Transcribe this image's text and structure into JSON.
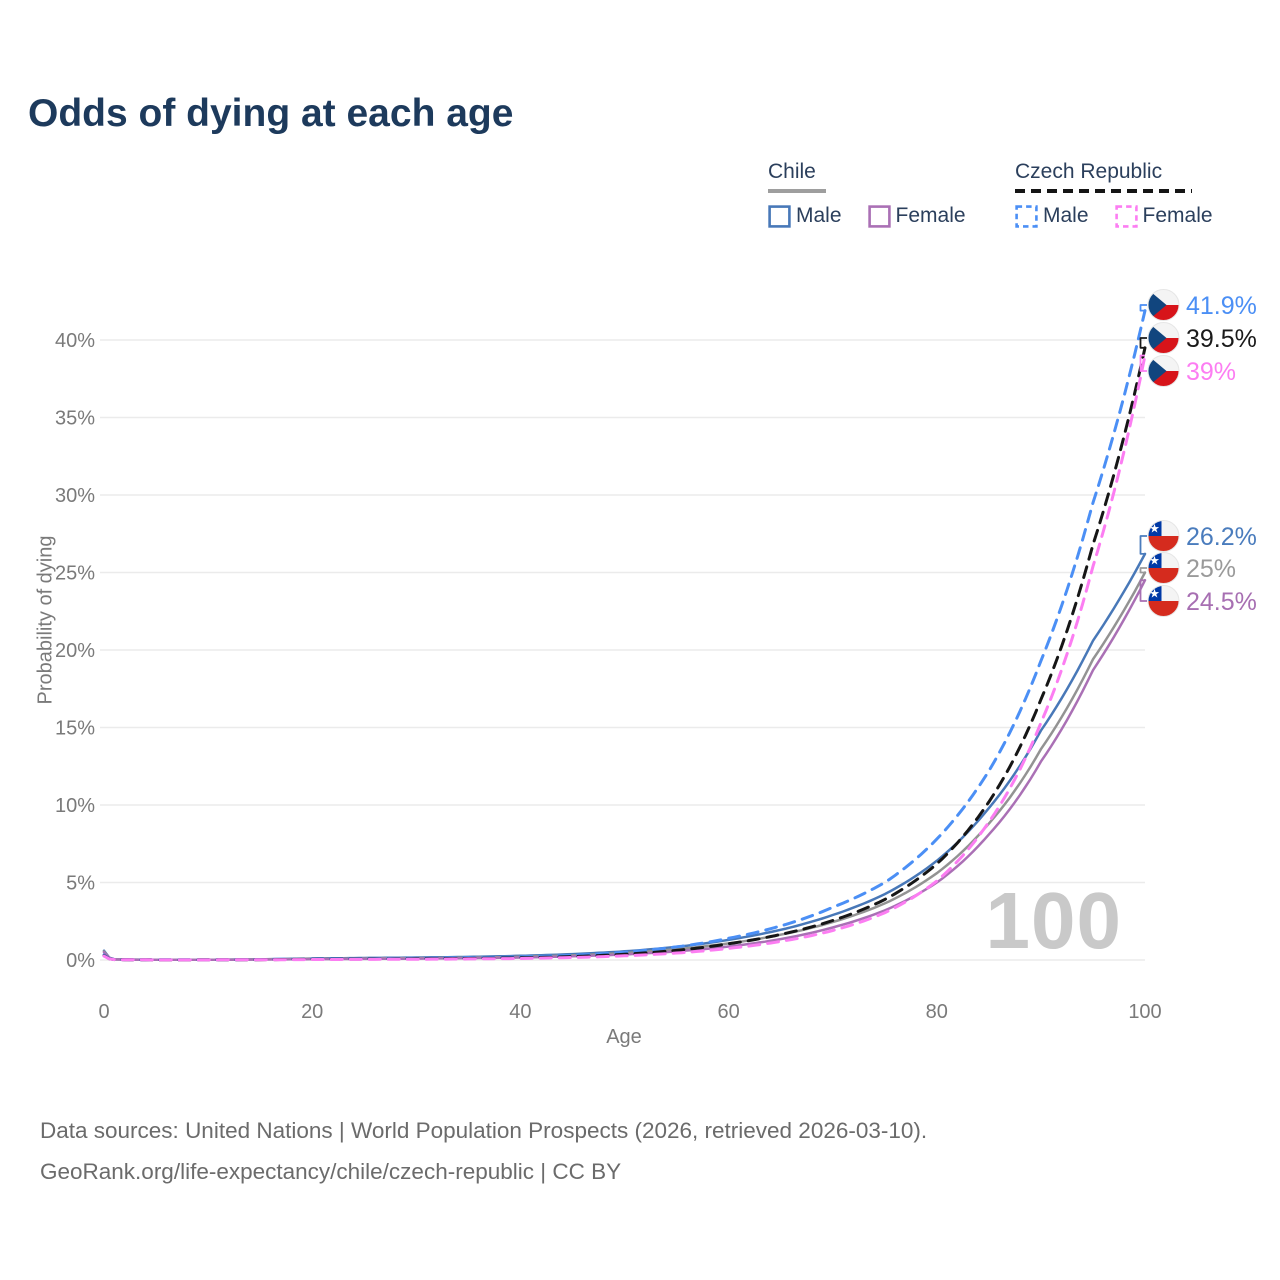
{
  "title": "Odds of dying at each age",
  "legend": {
    "groups": [
      {
        "label": "Chile",
        "line_style": "solid",
        "underline_color": "#9e9e9e",
        "items": [
          {
            "label": "Male",
            "color": "#4878b8"
          },
          {
            "label": "Female",
            "color": "#aa70b5"
          }
        ]
      },
      {
        "label": "Czech Republic",
        "line_style": "dashed",
        "underline_color": "#151515",
        "items": [
          {
            "label": "Male",
            "color": "#4b8ff5"
          },
          {
            "label": "Female",
            "color": "#fc7df2"
          }
        ]
      }
    ]
  },
  "axes": {
    "xlabel": "Age",
    "ylabel": "Probability of dying",
    "x_ticks": [
      0,
      20,
      40,
      60,
      80,
      100
    ],
    "x_tick_labels": [
      "0",
      "20",
      "40",
      "60",
      "80",
      "100"
    ],
    "y_ticks": [
      0,
      5,
      10,
      15,
      20,
      25,
      30,
      35,
      40
    ],
    "y_tick_labels": [
      "0%",
      "5%",
      "10%",
      "15%",
      "20%",
      "25%",
      "30%",
      "35%",
      "40%"
    ]
  },
  "watermark_age": "100",
  "end_labels": {
    "czech": [
      {
        "value": "41.9%",
        "series": "Czech Republic Male",
        "color": "#4b8ff5",
        "flag": "czech-flag-icon"
      },
      {
        "value": "39.5%",
        "series": "Czech Republic Both sexes",
        "color": "#1a1a1a",
        "flag": "czech-flag-icon"
      },
      {
        "value": "39%",
        "series": "Czech Republic Female",
        "color": "#fc7df2",
        "flag": "czech-flag-icon"
      }
    ],
    "chile": [
      {
        "value": "26.2%",
        "series": "Chile Male",
        "color": "#4a7cbd",
        "flag": "chile-flag-icon"
      },
      {
        "value": "25%",
        "series": "Chile Both sexes",
        "color": "#9a9a9a",
        "flag": "chile-flag-icon"
      },
      {
        "value": "24.5%",
        "series": "Chile Female",
        "color": "#a76fb2",
        "flag": "chile-flag-icon"
      }
    ]
  },
  "footer": {
    "line1": "Data sources: United Nations | World Population Prospects (2026, retrieved 2026-03-10).",
    "line2": "GeoRank.org/life-expectancy/chile/czech-republic | CC BY"
  },
  "chart_data": {
    "type": "line",
    "title": "Odds of dying at each age",
    "xlabel": "Age",
    "ylabel": "Probability of dying",
    "xlim": [
      0,
      100
    ],
    "ylim": [
      0,
      42
    ],
    "grid": true,
    "legend_position": "top-right",
    "units": "percent probability of dying at each age",
    "x": [
      0,
      1,
      5,
      10,
      15,
      20,
      25,
      30,
      35,
      40,
      45,
      50,
      55,
      60,
      65,
      70,
      75,
      80,
      85,
      90,
      95,
      100
    ],
    "series": [
      {
        "name": "Chile Male",
        "color": "#4878b8",
        "dash": "solid",
        "values": [
          0.6,
          0.045,
          0.017,
          0.02,
          0.05,
          0.1,
          0.13,
          0.16,
          0.2,
          0.27,
          0.38,
          0.56,
          0.85,
          1.3,
          1.95,
          2.9,
          4.25,
          6.4,
          9.8,
          14.8,
          20.6,
          26.2
        ],
        "end_value_label": "26.2%"
      },
      {
        "name": "Chile Both sexes",
        "color": "#939393",
        "dash": "solid",
        "values": [
          0.55,
          0.04,
          0.015,
          0.017,
          0.04,
          0.08,
          0.1,
          0.12,
          0.15,
          0.21,
          0.3,
          0.45,
          0.7,
          1.07,
          1.63,
          2.45,
          3.65,
          5.6,
          8.8,
          13.6,
          19.4,
          25.0
        ],
        "end_value_label": "25%"
      },
      {
        "name": "Chile Female",
        "color": "#aa70b5",
        "dash": "solid",
        "values": [
          0.5,
          0.035,
          0.013,
          0.015,
          0.03,
          0.055,
          0.07,
          0.09,
          0.12,
          0.16,
          0.24,
          0.36,
          0.56,
          0.87,
          1.35,
          2.1,
          3.2,
          5.0,
          8.1,
          12.8,
          18.7,
          24.5
        ],
        "end_value_label": "24.5%"
      },
      {
        "name": "Czech Republic Male",
        "color": "#4b8ff5",
        "dash": "dashed",
        "values": [
          0.32,
          0.03,
          0.01,
          0.012,
          0.03,
          0.07,
          0.09,
          0.11,
          0.14,
          0.2,
          0.3,
          0.5,
          0.85,
          1.4,
          2.2,
          3.4,
          5.0,
          7.8,
          12.2,
          19.3,
          29.5,
          41.9
        ],
        "end_value_label": "41.9%"
      },
      {
        "name": "Czech Republic Both sexes",
        "color": "#161616",
        "dash": "dashed",
        "values": [
          0.28,
          0.027,
          0.009,
          0.01,
          0.022,
          0.05,
          0.06,
          0.075,
          0.1,
          0.14,
          0.22,
          0.37,
          0.62,
          1.05,
          1.65,
          2.55,
          3.9,
          6.2,
          10.2,
          16.8,
          26.8,
          39.5
        ],
        "end_value_label": "39.5%"
      },
      {
        "name": "Czech Republic Female",
        "color": "#fc7df2",
        "dash": "dashed",
        "values": [
          0.25,
          0.023,
          0.008,
          0.009,
          0.016,
          0.03,
          0.04,
          0.05,
          0.07,
          0.1,
          0.16,
          0.27,
          0.45,
          0.75,
          1.2,
          1.9,
          3.05,
          5.1,
          8.9,
          15.3,
          25.4,
          39.0
        ],
        "end_value_label": "39%"
      }
    ]
  }
}
